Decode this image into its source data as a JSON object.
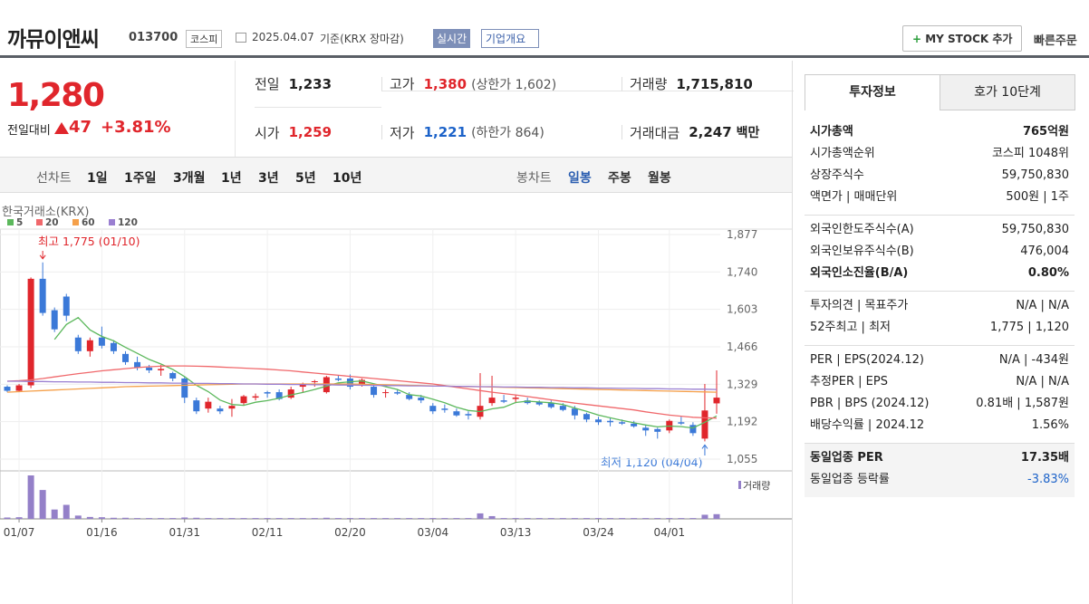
{
  "header": {
    "name": "까뮤이앤씨",
    "code": "013700",
    "market": "코스피",
    "date": "2025.04.07",
    "basis": "기준(KRX 장마감)",
    "realtime": "실시간",
    "overview": "기업개요",
    "mystock": "MY STOCK 추가",
    "quick_order": "빠른주문"
  },
  "price": {
    "current": "1,280",
    "change_label": "전일대비",
    "change": "47",
    "change_pct": "+3.81%"
  },
  "summary": [
    [
      {
        "label": "전일",
        "value": "1,233"
      },
      {
        "label": "고가",
        "value": "1,380",
        "note": "(상한가 1,602)"
      },
      {
        "label": "거래량",
        "value": "1,715,810"
      }
    ],
    [
      {
        "label": "시가",
        "value": "1,259"
      },
      {
        "label": "저가",
        "value": "1,221",
        "note": "(하한가 864)"
      },
      {
        "label": "거래대금",
        "value": "2,247",
        "unit": "백만"
      }
    ]
  ],
  "tabs": {
    "line_label": "선차트",
    "line_periods": [
      "1일",
      "1주일",
      "3개월",
      "1년",
      "3년",
      "5년",
      "10년"
    ],
    "candle_label": "봉차트",
    "candle_periods": [
      "일봉",
      "주봉",
      "월봉"
    ]
  },
  "chart_data": {
    "type": "candlestick",
    "source": "한국거래소(KRX)",
    "volume_label": "거래량",
    "annotations": [
      "최고 1,775 (01/10)",
      "최저 1,120 (04/04)"
    ],
    "up_color": "#e0262c",
    "down_color": "#3b79d8",
    "volume_color": "#9480c8",
    "categories": [
      null,
      "01/07",
      null,
      null,
      null,
      null,
      null,
      null,
      "01/16",
      null,
      null,
      null,
      null,
      null,
      null,
      "01/31",
      null,
      null,
      null,
      null,
      null,
      null,
      "02/11",
      null,
      null,
      null,
      null,
      null,
      null,
      "02/20",
      null,
      null,
      null,
      null,
      null,
      null,
      "03/04",
      null,
      null,
      null,
      null,
      null,
      null,
      "03/13",
      null,
      null,
      null,
      null,
      null,
      null,
      "03/24",
      null,
      null,
      null,
      null,
      null,
      "04/01",
      null,
      null,
      null,
      null
    ],
    "candles": [
      [
        1320,
        1325,
        1300,
        1305
      ],
      [
        1305,
        1330,
        1300,
        1325
      ],
      [
        1325,
        1720,
        1315,
        1715
      ],
      [
        1715,
        1775,
        1580,
        1590
      ],
      [
        1600,
        1610,
        1520,
        1530
      ],
      [
        1650,
        1660,
        1560,
        1580
      ],
      [
        1500,
        1510,
        1440,
        1450
      ],
      [
        1450,
        1500,
        1430,
        1490
      ],
      [
        1500,
        1540,
        1460,
        1470
      ],
      [
        1480,
        1490,
        1440,
        1450
      ],
      [
        1440,
        1450,
        1400,
        1410
      ],
      [
        1410,
        1430,
        1380,
        1390
      ],
      [
        1390,
        1400,
        1370,
        1380
      ],
      [
        1380,
        1400,
        1360,
        1385
      ],
      [
        1370,
        1375,
        1340,
        1350
      ],
      [
        1350,
        1355,
        1260,
        1280
      ],
      [
        1270,
        1280,
        1220,
        1230
      ],
      [
        1240,
        1280,
        1225,
        1265
      ],
      [
        1240,
        1250,
        1220,
        1230
      ],
      [
        1240,
        1275,
        1210,
        1250
      ],
      [
        1260,
        1290,
        1250,
        1285
      ],
      [
        1280,
        1295,
        1270,
        1285
      ],
      [
        1300,
        1305,
        1280,
        1295
      ],
      [
        1300,
        1310,
        1270,
        1275
      ],
      [
        1280,
        1320,
        1275,
        1310
      ],
      [
        1320,
        1335,
        1300,
        1330
      ],
      [
        1340,
        1345,
        1320,
        1340
      ],
      [
        1300,
        1360,
        1295,
        1355
      ],
      [
        1350,
        1360,
        1340,
        1345
      ],
      [
        1350,
        1365,
        1310,
        1320
      ],
      [
        1330,
        1350,
        1320,
        1345
      ],
      [
        1320,
        1330,
        1280,
        1290
      ],
      [
        1300,
        1310,
        1280,
        1300
      ],
      [
        1300,
        1310,
        1290,
        1295
      ],
      [
        1290,
        1300,
        1270,
        1275
      ],
      [
        1280,
        1290,
        1260,
        1270
      ],
      [
        1250,
        1260,
        1220,
        1230
      ],
      [
        1240,
        1255,
        1225,
        1235
      ],
      [
        1230,
        1240,
        1210,
        1215
      ],
      [
        1220,
        1230,
        1200,
        1215
      ],
      [
        1210,
        1370,
        1200,
        1250
      ],
      [
        1260,
        1360,
        1250,
        1280
      ],
      [
        1270,
        1290,
        1260,
        1265
      ],
      [
        1275,
        1290,
        1260,
        1280
      ],
      [
        1270,
        1280,
        1255,
        1260
      ],
      [
        1265,
        1270,
        1250,
        1255
      ],
      [
        1260,
        1270,
        1240,
        1245
      ],
      [
        1250,
        1260,
        1230,
        1235
      ],
      [
        1240,
        1250,
        1200,
        1215
      ],
      [
        1220,
        1225,
        1190,
        1200
      ],
      [
        1200,
        1210,
        1180,
        1190
      ],
      [
        1195,
        1205,
        1175,
        1190
      ],
      [
        1190,
        1200,
        1180,
        1185
      ],
      [
        1185,
        1195,
        1170,
        1175
      ],
      [
        1170,
        1180,
        1140,
        1160
      ],
      [
        1165,
        1170,
        1130,
        1155
      ],
      [
        1160,
        1200,
        1150,
        1195
      ],
      [
        1190,
        1210,
        1180,
        1185
      ],
      [
        1180,
        1190,
        1140,
        1150
      ],
      [
        1130,
        1330,
        1120,
        1233
      ],
      [
        1259,
        1380,
        1221,
        1280
      ]
    ],
    "ma": [
      {
        "name": "5",
        "color": "#5cb85c",
        "values": [
          null,
          null,
          null,
          null,
          1493,
          1548,
          1573,
          1528,
          1504,
          1488,
          1464,
          1442,
          1420,
          1403,
          1383,
          1357,
          1325,
          1302,
          1271,
          1255,
          1252,
          1263,
          1269,
          1278,
          1290,
          1299,
          1310,
          1322,
          1334,
          1338,
          1341,
          1331,
          1320,
          1310,
          1291,
          1286,
          1274,
          1261,
          1245,
          1233,
          1229,
          1239,
          1245,
          1262,
          1267,
          1264,
          1261,
          1255,
          1242,
          1230,
          1216,
          1206,
          1197,
          1188,
          1180,
          1173,
          1176,
          1174,
          1169,
          1190,
          1213
        ]
      },
      {
        "name": "20",
        "color": "#f0686b",
        "values": [
          1340,
          1342,
          1345,
          1350,
          1356,
          1362,
          1368,
          1373,
          1378,
          1382,
          1386,
          1390,
          1393,
          1395,
          1396,
          1396,
          1395,
          1394,
          1392,
          1390,
          1388,
          1386,
          1384,
          1381,
          1378,
          1374,
          1370,
          1366,
          1362,
          1358,
          1354,
          1350,
          1346,
          1342,
          1338,
          1334,
          1330,
          1324,
          1318,
          1312,
          1306,
          1300,
          1295,
          1290,
          1284,
          1278,
          1272,
          1266,
          1260,
          1255,
          1250,
          1245,
          1240,
          1235,
          1228,
          1222,
          1216,
          1212,
          1208,
          1206,
          1205
        ]
      },
      {
        "name": "60",
        "color": "#f5a04a",
        "values": [
          1300,
          1302,
          1304,
          1306,
          1308,
          1310,
          1312,
          1314,
          1316,
          1318,
          1320,
          1321,
          1322,
          1323,
          1324,
          1325,
          1326,
          1327,
          1328,
          1329,
          1330,
          1330,
          1330,
          1330,
          1330,
          1330,
          1330,
          1330,
          1330,
          1330,
          1329,
          1328,
          1327,
          1326,
          1325,
          1324,
          1323,
          1322,
          1321,
          1320,
          1320,
          1319,
          1318,
          1317,
          1316,
          1315,
          1314,
          1313,
          1312,
          1311,
          1310,
          1309,
          1308,
          1307,
          1306,
          1305,
          1304,
          1303,
          1302,
          1301,
          1300
        ]
      },
      {
        "name": "120",
        "color": "#9a7fd1",
        "values": [
          1340,
          1340,
          1339,
          1339,
          1338,
          1338,
          1337,
          1337,
          1336,
          1336,
          1335,
          1335,
          1334,
          1334,
          1333,
          1333,
          1332,
          1332,
          1331,
          1331,
          1330,
          1330,
          1329,
          1329,
          1328,
          1328,
          1327,
          1327,
          1326,
          1326,
          1325,
          1325,
          1324,
          1324,
          1323,
          1323,
          1322,
          1322,
          1321,
          1321,
          1320,
          1320,
          1319,
          1319,
          1318,
          1318,
          1317,
          1317,
          1316,
          1316,
          1315,
          1315,
          1314,
          1314,
          1313,
          1313,
          1312,
          1312,
          1311,
          1311,
          1310
        ]
      }
    ],
    "volume": [
      500000,
      600000,
      15800000,
      10500000,
      3400000,
      5100000,
      1200000,
      700000,
      600000,
      400000,
      400000,
      300000,
      300000,
      300000,
      300000,
      500000,
      400000,
      300000,
      300000,
      300000,
      300000,
      300000,
      300000,
      300000,
      300000,
      300000,
      300000,
      400000,
      300000,
      300000,
      300000,
      300000,
      300000,
      300000,
      300000,
      300000,
      300000,
      300000,
      300000,
      300000,
      2000000,
      1000000,
      300000,
      300000,
      300000,
      300000,
      300000,
      300000,
      300000,
      300000,
      300000,
      300000,
      300000,
      300000,
      300000,
      300000,
      300000,
      300000,
      300000,
      1500000,
      1715810
    ],
    "ylim": [
      1055,
      1877
    ],
    "yticks": [
      {
        "value": 1877,
        "label": "1,877"
      },
      {
        "value": 1740,
        "label": "1,740"
      },
      {
        "value": 1603,
        "label": "1,603"
      },
      {
        "value": 1466,
        "label": "1,466"
      },
      {
        "value": 1329,
        "label": "1,329"
      },
      {
        "value": 1192,
        "label": "1,192"
      },
      {
        "value": 1055,
        "label": "1,055"
      }
    ],
    "grid": true
  },
  "info": {
    "tabs": [
      "투자정보",
      "호가 10단계"
    ],
    "groups": [
      {
        "rows": [
          {
            "label": "시가총액",
            "value": "765억원",
            "bold": true
          },
          {
            "label": "시가총액순위",
            "value": "코스피 1048위"
          },
          {
            "label": "상장주식수",
            "value": "59,750,830"
          },
          {
            "label": "액면가 | 매매단위",
            "value": "500원 | 1주"
          }
        ]
      },
      {
        "rows": [
          {
            "label": "외국인한도주식수(A)",
            "value": "59,750,830"
          },
          {
            "label": "외국인보유주식수(B)",
            "value": "476,004"
          },
          {
            "label": "외국인소진율(B/A)",
            "value": "0.80%",
            "bold": true
          }
        ]
      },
      {
        "rows": [
          {
            "label": "투자의견 | 목표주가",
            "value": "N/A | N/A"
          },
          {
            "label": "52주최고 | 최저",
            "value": "1,775 | 1,120"
          }
        ]
      },
      {
        "rows": [
          {
            "label": "PER | EPS(2024.12)",
            "value": "N/A | -434원"
          },
          {
            "label": "추정PER | EPS",
            "value": "N/A | N/A"
          },
          {
            "label": "PBR | BPS (2024.12)",
            "value": "0.81배 | 1,587원"
          },
          {
            "label": "배당수익률 | 2024.12",
            "value": "1.56%"
          }
        ]
      },
      {
        "shaded": true,
        "rows": [
          {
            "label": "동일업종 PER",
            "value": "17.35배",
            "bold": true
          },
          {
            "label": "동일업종 등락률",
            "value": "-3.83%",
            "blue": true
          }
        ]
      }
    ]
  }
}
